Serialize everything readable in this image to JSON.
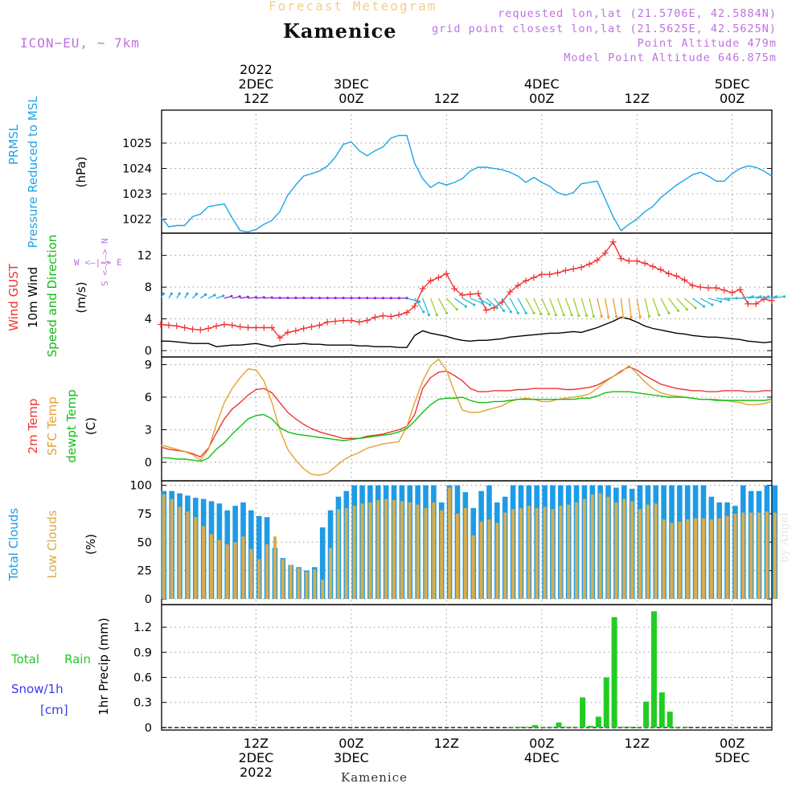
{
  "header": {
    "chart_title": "Forecast Meteogram",
    "station": "Kamenice",
    "model": "ICON−EU, ~ 7km",
    "requested": "requested lon,lat (21.5706E, 42.5884N)",
    "grid_point": "grid point closest lon,lat (21.5625E, 42.5625N)",
    "point_altitude": "Point Altitude 479m",
    "model_altitude": "Model Point Altitude 646.875m",
    "credit": "by Angel",
    "footer_station": "Kamenice"
  },
  "colors": {
    "pressure": "#1ea5e8",
    "gust": "#ee3535",
    "wind": "#000000",
    "direction": "#11bb11",
    "temp2m": "#ee3535",
    "sfc_temp": "#e6a030",
    "dewpoint": "#11c011",
    "total_clouds": "#1e9be6",
    "low_clouds": "#d9ac4c",
    "rain": "#22cc22",
    "snow": "#3a3aee",
    "purple": "#c070e0"
  },
  "time_axis": {
    "top_labels": [
      {
        "t": 12,
        "lines": [
          "2022",
          "2DEC",
          "12Z"
        ]
      },
      {
        "t": 24,
        "lines": [
          "3DEC",
          "00Z"
        ]
      },
      {
        "t": 36,
        "lines": [
          "12Z"
        ]
      },
      {
        "t": 48,
        "lines": [
          "4DEC",
          "00Z"
        ]
      },
      {
        "t": 60,
        "lines": [
          "12Z"
        ]
      },
      {
        "t": 72,
        "lines": [
          "5DEC",
          "00Z"
        ]
      }
    ],
    "bottom_labels": [
      {
        "t": 12,
        "lines": [
          "12Z",
          "2DEC",
          "2022"
        ]
      },
      {
        "t": 24,
        "lines": [
          "00Z",
          "3DEC"
        ]
      },
      {
        "t": 36,
        "lines": [
          "12Z"
        ]
      },
      {
        "t": 48,
        "lines": [
          "00Z",
          "4DEC"
        ]
      },
      {
        "t": 60,
        "lines": [
          "12Z"
        ]
      },
      {
        "t": 72,
        "lines": [
          "00Z",
          "5DEC"
        ]
      }
    ]
  },
  "compass": {
    "n": "N",
    "s": "S",
    "e": "E",
    "w": "W"
  },
  "chart_data": [
    {
      "type": "line",
      "panel": "pressure",
      "side_labels": [
        "PRMSL",
        "Pressure Reduced to MSL",
        "(hPa)"
      ],
      "yticks": [
        1022,
        1023,
        1024,
        1025
      ],
      "ylim": [
        1021.45,
        1026.3
      ],
      "series": [
        {
          "name": "PRMSL Pressure Reduced to MSL",
          "color": "#1ea5e8",
          "x": [
            0,
            1,
            2,
            3,
            4,
            5,
            6,
            7,
            8,
            9,
            10,
            11,
            12,
            13,
            14,
            15,
            16,
            17,
            18,
            19,
            20,
            21,
            22,
            23,
            24,
            25,
            26,
            27,
            28,
            29,
            30,
            31,
            32,
            33,
            34,
            35,
            36,
            37,
            38,
            39,
            40,
            41,
            42,
            43,
            44,
            45,
            46,
            47,
            48,
            49,
            50,
            51,
            52,
            53,
            54,
            55,
            56,
            57,
            58,
            59,
            60,
            61,
            62,
            63,
            64,
            65,
            66,
            67,
            68,
            69,
            70,
            71,
            72,
            73,
            74,
            75,
            76,
            77
          ],
          "values": [
            1022.1,
            1021.7,
            1021.75,
            1021.75,
            1022.1,
            1022.2,
            1022.5,
            1022.55,
            1022.6,
            1022.05,
            1021.55,
            1021.5,
            1021.6,
            1021.8,
            1021.95,
            1022.3,
            1022.95,
            1023.35,
            1023.7,
            1023.8,
            1023.9,
            1024.1,
            1024.45,
            1024.95,
            1025.05,
            1024.7,
            1024.5,
            1024.7,
            1024.85,
            1025.2,
            1025.3,
            1025.3,
            1024.2,
            1023.6,
            1023.25,
            1023.45,
            1023.35,
            1023.45,
            1023.6,
            1023.9,
            1024.05,
            1024.05,
            1024.0,
            1023.95,
            1023.85,
            1023.7,
            1023.45,
            1023.65,
            1023.45,
            1023.3,
            1023.05,
            1022.95,
            1023.05,
            1023.4,
            1023.45,
            1023.5,
            1022.8,
            1022.1,
            1021.55,
            1021.8,
            1022.0,
            1022.3,
            1022.5,
            1022.85,
            1023.1,
            1023.35,
            1023.55,
            1023.75,
            1023.85,
            1023.7,
            1023.5,
            1023.5,
            1023.8,
            1024.0,
            1024.1,
            1024.05,
            1023.9,
            1023.7
          ]
        }
      ]
    },
    {
      "type": "line",
      "panel": "wind",
      "side_labels": [
        "Wind GUST",
        "10m Wind",
        "Speed and Direction",
        "(m/s)"
      ],
      "yticks": [
        0,
        4,
        8,
        12
      ],
      "ylim": [
        -0.8,
        14.8
      ],
      "series": [
        {
          "name": "Wind GUST",
          "color": "#ee3535",
          "marker": "plus",
          "values": [
            3.3,
            3.2,
            3.1,
            2.9,
            2.7,
            2.6,
            2.8,
            3.1,
            3.3,
            3.2,
            3.0,
            2.9,
            2.9,
            2.9,
            2.9,
            1.6,
            2.3,
            2.5,
            2.8,
            3.0,
            3.2,
            3.6,
            3.7,
            3.8,
            3.8,
            3.6,
            3.8,
            4.2,
            4.4,
            4.3,
            4.5,
            4.8,
            5.6,
            7.8,
            8.8,
            9.2,
            9.7,
            7.8,
            7.0,
            7.1,
            7.2,
            5.1,
            5.4,
            6.1,
            7.4,
            8.2,
            8.8,
            9.2,
            9.6,
            9.6,
            9.8,
            10.1,
            10.3,
            10.5,
            10.9,
            11.4,
            12.3,
            13.7,
            11.6,
            11.3,
            11.3,
            11.0,
            10.6,
            10.2,
            9.7,
            9.4,
            8.9,
            8.2,
            8.0,
            7.9,
            7.9,
            7.6,
            7.3,
            7.7,
            5.9,
            5.9,
            6.5,
            6.3
          ]
        },
        {
          "name": "10m Wind",
          "color": "#000000",
          "values": [
            1.2,
            1.2,
            1.1,
            1.0,
            0.9,
            0.9,
            0.9,
            0.5,
            0.6,
            0.7,
            0.7,
            0.8,
            0.9,
            0.7,
            0.5,
            0.7,
            0.8,
            0.8,
            0.9,
            0.8,
            0.8,
            0.7,
            0.7,
            0.7,
            0.7,
            0.6,
            0.6,
            0.5,
            0.5,
            0.5,
            0.4,
            0.4,
            1.9,
            2.5,
            2.2,
            2.0,
            1.8,
            1.5,
            1.3,
            1.2,
            1.3,
            1.3,
            1.4,
            1.5,
            1.7,
            1.8,
            1.9,
            2.0,
            2.1,
            2.2,
            2.2,
            2.3,
            2.4,
            2.3,
            2.6,
            2.9,
            3.3,
            3.7,
            4.2,
            4.0,
            3.6,
            3.1,
            2.8,
            2.6,
            2.4,
            2.2,
            2.1,
            1.9,
            1.8,
            1.7,
            1.7,
            1.6,
            1.5,
            1.4,
            1.2,
            1.1,
            1.0,
            1.1
          ]
        },
        {
          "name": "direction_deg",
          "color": "#11bb11",
          "values": [
            20,
            20,
            20,
            20,
            30,
            40,
            50,
            60,
            65,
            70,
            75,
            80,
            80,
            82,
            85,
            85,
            86,
            86,
            86,
            87,
            87,
            87,
            87,
            87,
            87,
            87,
            88,
            88,
            88,
            88,
            88,
            100,
            135,
            150,
            150,
            140,
            125,
            115,
            110,
            105,
            110,
            120,
            130,
            135,
            140,
            140,
            140,
            145,
            145,
            150,
            150,
            150,
            155,
            155,
            160,
            160,
            165,
            165,
            170,
            170,
            165,
            160,
            150,
            140,
            130,
            125,
            120,
            115,
            110,
            100,
            95,
            90,
            90,
            85,
            85,
            85,
            85,
            85
          ]
        }
      ]
    },
    {
      "type": "line",
      "panel": "temperature",
      "side_labels": [
        "2m Temp",
        "SFC Temp",
        "dewpt Temp",
        "(C)"
      ],
      "yticks": [
        0,
        3,
        6,
        9
      ],
      "ylim": [
        -1.7,
        9.7
      ],
      "series": [
        {
          "name": "2m Temp",
          "color": "#ee3535",
          "values": [
            1.4,
            1.2,
            1.1,
            1.0,
            0.8,
            0.5,
            1.3,
            2.7,
            4.0,
            4.9,
            5.5,
            6.2,
            6.7,
            6.8,
            6.4,
            5.5,
            4.6,
            4.0,
            3.5,
            3.1,
            2.8,
            2.6,
            2.4,
            2.2,
            2.2,
            2.2,
            2.4,
            2.5,
            2.6,
            2.8,
            3.0,
            3.3,
            4.4,
            6.8,
            7.8,
            8.3,
            8.4,
            8.0,
            7.5,
            6.8,
            6.5,
            6.5,
            6.6,
            6.6,
            6.6,
            6.7,
            6.7,
            6.8,
            6.8,
            6.8,
            6.8,
            6.7,
            6.7,
            6.8,
            6.9,
            7.1,
            7.5,
            7.9,
            8.4,
            8.8,
            8.5,
            8.0,
            7.6,
            7.2,
            7.0,
            6.8,
            6.7,
            6.6,
            6.6,
            6.5,
            6.5,
            6.6,
            6.6,
            6.6,
            6.5,
            6.5,
            6.6,
            6.6
          ]
        },
        {
          "name": "SFC Temp",
          "color": "#e6a030",
          "values": [
            1.6,
            1.4,
            1.2,
            1.0,
            0.7,
            0.2,
            1.2,
            3.5,
            5.5,
            6.8,
            7.8,
            8.6,
            8.5,
            7.5,
            5.5,
            3.0,
            1.2,
            0.2,
            -0.6,
            -1.1,
            -1.2,
            -1.0,
            -0.4,
            0.2,
            0.6,
            0.9,
            1.3,
            1.5,
            1.7,
            1.8,
            1.9,
            3.3,
            5.5,
            7.5,
            8.9,
            9.5,
            8.5,
            6.5,
            4.8,
            4.6,
            4.6,
            4.8,
            5.0,
            5.2,
            5.6,
            5.8,
            5.9,
            5.8,
            5.6,
            5.6,
            5.8,
            5.9,
            6.0,
            6.1,
            6.3,
            6.8,
            7.4,
            7.9,
            8.3,
            8.9,
            8.2,
            7.4,
            6.8,
            6.4,
            6.2,
            6.1,
            6.0,
            5.9,
            5.8,
            5.8,
            5.8,
            5.7,
            5.6,
            5.5,
            5.3,
            5.3,
            5.4,
            5.6
          ]
        },
        {
          "name": "dewpt Temp",
          "color": "#11c011",
          "values": [
            0.4,
            0.4,
            0.3,
            0.3,
            0.2,
            0.1,
            0.4,
            1.2,
            1.8,
            2.6,
            3.3,
            4.0,
            4.3,
            4.4,
            4.0,
            3.2,
            2.8,
            2.6,
            2.5,
            2.4,
            2.3,
            2.2,
            2.1,
            2.0,
            2.1,
            2.2,
            2.3,
            2.4,
            2.5,
            2.6,
            2.8,
            3.1,
            3.8,
            4.6,
            5.3,
            5.8,
            5.9,
            5.9,
            6.0,
            5.7,
            5.5,
            5.5,
            5.6,
            5.6,
            5.7,
            5.8,
            5.8,
            5.8,
            5.8,
            5.8,
            5.8,
            5.8,
            5.8,
            5.9,
            5.9,
            6.1,
            6.4,
            6.5,
            6.5,
            6.5,
            6.4,
            6.3,
            6.2,
            6.1,
            6.0,
            6.0,
            6.0,
            5.9,
            5.8,
            5.8,
            5.7,
            5.7,
            5.7,
            5.7,
            5.7,
            5.7,
            5.7,
            5.8
          ]
        }
      ]
    },
    {
      "type": "bar",
      "panel": "clouds",
      "side_labels": [
        "Total Clouds",
        "Low Clouds",
        "(%)"
      ],
      "yticks": [
        0,
        25,
        50,
        75,
        100
      ],
      "ylim": [
        -5,
        104
      ],
      "series": [
        {
          "name": "Total Clouds",
          "color": "#1e9be6",
          "values": [
            95,
            95,
            93,
            91,
            89,
            88,
            86,
            84,
            78,
            82,
            85,
            78,
            73,
            72,
            45,
            36,
            30,
            28,
            25,
            28,
            63,
            78,
            90,
            95,
            100,
            100,
            100,
            100,
            100,
            100,
            100,
            100,
            100,
            100,
            100,
            85,
            100,
            100,
            94,
            80,
            95,
            100,
            85,
            90,
            100,
            100,
            100,
            100,
            100,
            100,
            100,
            100,
            100,
            100,
            100,
            100,
            100,
            98,
            100,
            97,
            100,
            100,
            100,
            100,
            100,
            100,
            100,
            100,
            100,
            90,
            85,
            85,
            82,
            100,
            95,
            95,
            100,
            100
          ]
        },
        {
          "name": "Low Clouds",
          "color": "#d9ac4c",
          "values": [
            92,
            88,
            81,
            77,
            72,
            64,
            57,
            52,
            48,
            50,
            55,
            44,
            35,
            48,
            55,
            35,
            30,
            27,
            24,
            26,
            17,
            45,
            79,
            80,
            82,
            84,
            85,
            87,
            88,
            87,
            86,
            85,
            83,
            80,
            85,
            78,
            98,
            75,
            80,
            56,
            68,
            70,
            67,
            76,
            79,
            80,
            82,
            80,
            81,
            79,
            82,
            83,
            85,
            88,
            92,
            93,
            90,
            85,
            88,
            86,
            79,
            83,
            84,
            70,
            67,
            68,
            70,
            71,
            71,
            70,
            71,
            73,
            75,
            76,
            76,
            76,
            77,
            76
          ]
        }
      ]
    },
    {
      "type": "bar",
      "panel": "precip",
      "side_labels": [
        "Total",
        "Rain",
        "Snow/1h",
        "[cm]",
        "1hr Precip (mm)"
      ],
      "yticks": [
        0,
        0.3,
        0.6,
        0.9,
        1.2
      ],
      "ylim": [
        -0.03,
        1.47
      ],
      "series": [
        {
          "name": "Total Rain",
          "color": "#22cc22",
          "x": [
            44,
            45,
            46,
            47,
            48,
            49,
            50,
            51,
            52,
            53,
            54,
            55,
            56,
            57,
            58,
            59,
            60,
            61,
            62,
            63,
            64,
            65,
            66
          ],
          "values": [
            0.01,
            0.01,
            0.01,
            0.03,
            0.01,
            0.01,
            0.06,
            0.01,
            0.01,
            0.36,
            0.02,
            0.13,
            0.6,
            1.32,
            0.01,
            0.01,
            0.01,
            0.31,
            1.39,
            0.42,
            0.19,
            0.01,
            0.01
          ]
        }
      ]
    }
  ]
}
